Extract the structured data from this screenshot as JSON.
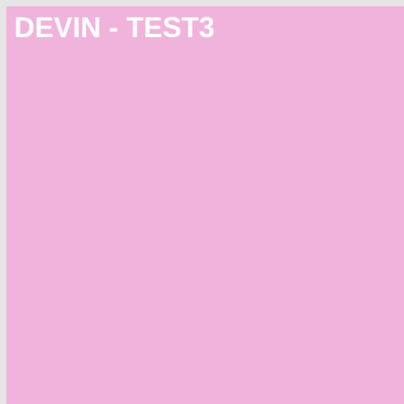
{
  "panel": {
    "title": "DEVIN - TEST3",
    "background_color": "#f0b3db",
    "title_color": "#ffffff"
  },
  "page": {
    "background_color": "#e6e6e6"
  }
}
